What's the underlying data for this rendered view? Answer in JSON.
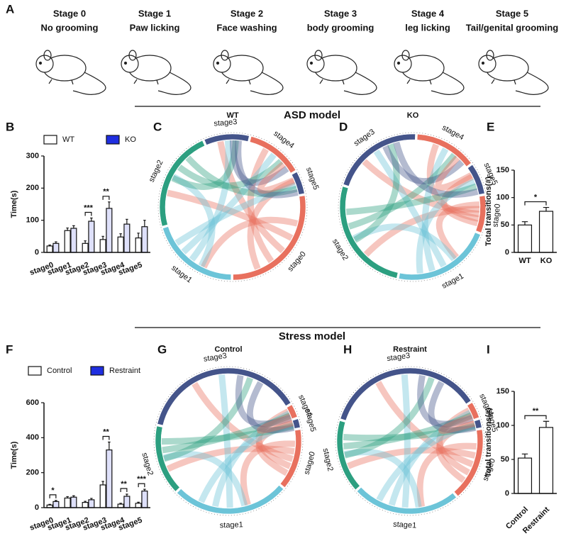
{
  "panels": [
    "A",
    "B",
    "C",
    "D",
    "E",
    "F",
    "G",
    "H",
    "I"
  ],
  "stages": [
    {
      "stage": "Stage 0",
      "behavior": "No grooming"
    },
    {
      "stage": "Stage 1",
      "behavior": "Paw licking"
    },
    {
      "stage": "Stage 2",
      "behavior": "Face washing"
    },
    {
      "stage": "Stage 3",
      "behavior": "body grooming"
    },
    {
      "stage": "Stage 4",
      "behavior": "leg licking"
    },
    {
      "stage": "Stage 5",
      "behavior": "Tail/genital grooming"
    }
  ],
  "section_titles": [
    "ASD model",
    "Stress model"
  ],
  "chart_data": [
    {
      "type": "bar",
      "ylabel": "Time(s)",
      "categories": [
        "stage0",
        "stage1",
        "stage2",
        "stage3",
        "stage4",
        "stage5"
      ],
      "series": [
        {
          "name": "WT",
          "color": "#ffffff",
          "values": [
            20,
            68,
            28,
            40,
            48,
            45
          ],
          "errors": [
            3,
            8,
            8,
            10,
            10,
            15
          ]
        },
        {
          "name": "KO",
          "color": "#1f2ee0",
          "values": [
            28,
            75,
            97,
            137,
            88,
            80
          ],
          "errors": [
            5,
            8,
            10,
            20,
            15,
            20
          ]
        }
      ],
      "ylim": [
        0,
        300
      ],
      "yticks": [
        0,
        100,
        200,
        300
      ],
      "annotations": [
        {
          "label": "***",
          "categories": [
            "stage2"
          ]
        },
        {
          "label": "**",
          "categories": [
            "stage3"
          ]
        }
      ]
    },
    {
      "type": "chord",
      "title": "WT",
      "categories": [
        "stage0",
        "stage1",
        "stage2",
        "stage3",
        "stage4",
        "stage5"
      ],
      "values": [
        33,
        24,
        27,
        12,
        15,
        6
      ],
      "colors": [
        "#e8705e",
        "#6cc4d8",
        "#2c9f80",
        "#44548a",
        "#e8705e",
        "#44548a"
      ]
    },
    {
      "type": "chord",
      "title": "KO",
      "categories": [
        "stage0",
        "stage1",
        "stage2",
        "stage3",
        "stage4",
        "stage5"
      ],
      "values": [
        12,
        32,
        38,
        30,
        20,
        10
      ],
      "colors": [
        "#e8705e",
        "#6cc4d8",
        "#2c9f80",
        "#44548a",
        "#e8705e",
        "#44548a"
      ]
    },
    {
      "type": "bar",
      "ylabel": "Total transitions(#)",
      "categories": [
        "WT",
        "KO"
      ],
      "values": [
        50,
        75
      ],
      "errors": [
        6,
        7
      ],
      "color": "#ffffff",
      "ylim": [
        0,
        150
      ],
      "yticks": [
        0,
        50,
        100,
        150
      ],
      "annotations": [
        {
          "label": "*",
          "categories": [
            "WT",
            "KO"
          ]
        }
      ]
    },
    {
      "type": "bar",
      "ylabel": "Time(s)",
      "categories": [
        "stage0",
        "stage1",
        "stage2",
        "stage3",
        "stage4",
        "stage5"
      ],
      "series": [
        {
          "name": "Control",
          "color": "#ffffff",
          "values": [
            15,
            55,
            30,
            130,
            20,
            25
          ],
          "errors": [
            4,
            8,
            6,
            20,
            5,
            6
          ]
        },
        {
          "name": "Restraint",
          "color": "#1f2ee0",
          "values": [
            35,
            60,
            45,
            330,
            65,
            95
          ],
          "errors": [
            6,
            8,
            8,
            45,
            12,
            10
          ]
        }
      ],
      "ylim": [
        0,
        600
      ],
      "yticks": [
        0,
        200,
        400,
        600
      ],
      "annotations": [
        {
          "label": "*",
          "categories": [
            "stage0"
          ]
        },
        {
          "label": "**",
          "categories": [
            "stage3"
          ]
        },
        {
          "label": "**",
          "categories": [
            "stage4"
          ]
        },
        {
          "label": "***",
          "categories": [
            "stage5"
          ]
        }
      ]
    },
    {
      "type": "chord",
      "title": "Control",
      "categories": [
        "stage0",
        "stage1",
        "stage2",
        "stage3",
        "stage4",
        "stage5"
      ],
      "values": [
        14,
        27,
        16,
        39,
        3,
        2
      ],
      "colors": [
        "#e8705e",
        "#6cc4d8",
        "#2c9f80",
        "#44548a",
        "#e8705e",
        "#44548a"
      ]
    },
    {
      "type": "chord",
      "title": "Restraint",
      "categories": [
        "stage0",
        "stage1",
        "stage2",
        "stage3",
        "stage4",
        "stage5"
      ],
      "values": [
        27,
        40,
        27,
        60,
        6,
        3
      ],
      "colors": [
        "#e8705e",
        "#6cc4d8",
        "#2c9f80",
        "#44548a",
        "#e8705e",
        "#44548a"
      ]
    },
    {
      "type": "bar",
      "ylabel": "Total transitions(#)",
      "categories": [
        "Control",
        "Restraint"
      ],
      "values": [
        52,
        97
      ],
      "errors": [
        6,
        9
      ],
      "color": "#ffffff",
      "ylim": [
        0,
        150
      ],
      "yticks": [
        0,
        50,
        100,
        150
      ],
      "annotations": [
        {
          "label": "**",
          "categories": [
            "Control",
            "Restraint"
          ]
        }
      ]
    }
  ]
}
